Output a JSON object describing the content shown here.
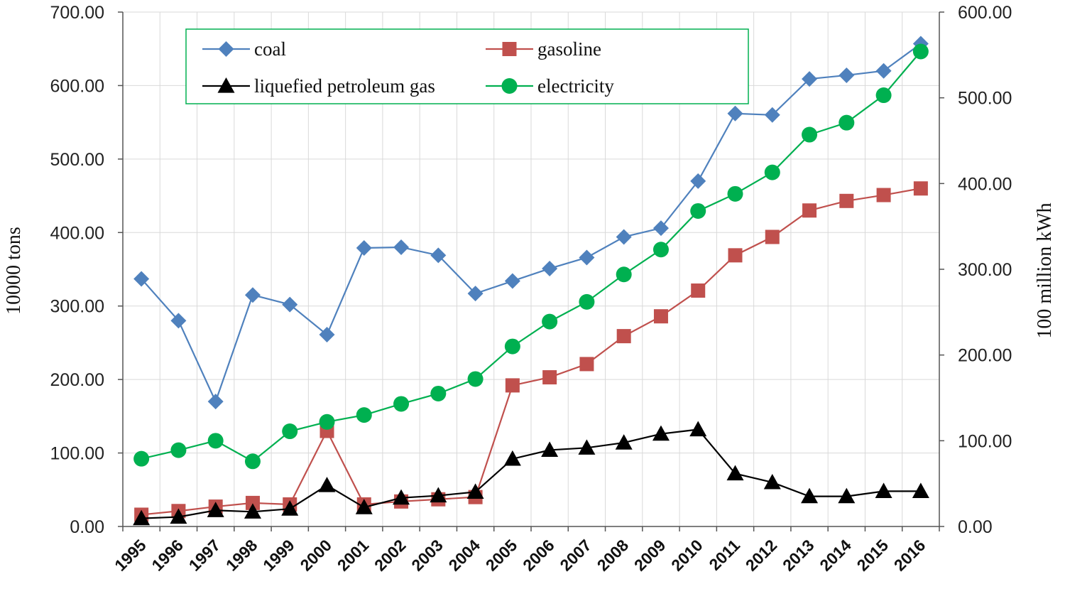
{
  "chart_data": {
    "type": "line",
    "title": "",
    "categories": [
      "1995",
      "1996",
      "1997",
      "1998",
      "1999",
      "2000",
      "2001",
      "2002",
      "2003",
      "2004",
      "2005",
      "2006",
      "2007",
      "2008",
      "2009",
      "2010",
      "2011",
      "2012",
      "2013",
      "2014",
      "2015",
      "2016"
    ],
    "ylabel_left": "10000 tons",
    "ylabel_right": "100 million kWh",
    "ylim_left": [
      0,
      700
    ],
    "ylim_right": [
      0,
      600
    ],
    "yticks_left": [
      "0.00",
      "100.00",
      "200.00",
      "300.00",
      "400.00",
      "500.00",
      "600.00",
      "700.00"
    ],
    "yticks_right": [
      "0.00",
      "100.00",
      "200.00",
      "300.00",
      "400.00",
      "500.00",
      "600.00"
    ],
    "grid": true,
    "legend_position": "top",
    "series": [
      {
        "name": "coal",
        "axis": "left",
        "color": "#4f81bd",
        "marker": "diamond",
        "values": [
          337,
          280,
          170,
          315,
          302,
          261,
          379,
          380,
          369,
          317,
          334,
          351,
          366,
          394,
          406,
          470,
          562,
          560,
          609,
          614,
          620,
          657
        ]
      },
      {
        "name": "gasoline",
        "axis": "left",
        "color": "#c0504d",
        "marker": "square",
        "values": [
          16,
          21,
          27,
          32,
          30,
          130,
          30,
          34,
          37,
          40,
          192,
          203,
          221,
          259,
          286,
          321,
          369,
          394,
          430,
          443,
          451,
          460
        ]
      },
      {
        "name": "liquefied petroleum gas",
        "axis": "left",
        "color": "#000000",
        "marker": "triangle",
        "values": [
          11,
          13,
          22,
          20,
          24,
          56,
          26,
          39,
          42,
          47,
          92,
          104,
          107,
          114,
          126,
          132,
          72,
          60,
          41,
          41,
          48,
          48
        ]
      },
      {
        "name": "electricity",
        "axis": "right",
        "color": "#00b050",
        "marker": "circle",
        "values": [
          79,
          89,
          100,
          76,
          111,
          122,
          130,
          143,
          155,
          172,
          210,
          239,
          262,
          294,
          323,
          368,
          388,
          413,
          457,
          471,
          503,
          554
        ]
      }
    ]
  }
}
